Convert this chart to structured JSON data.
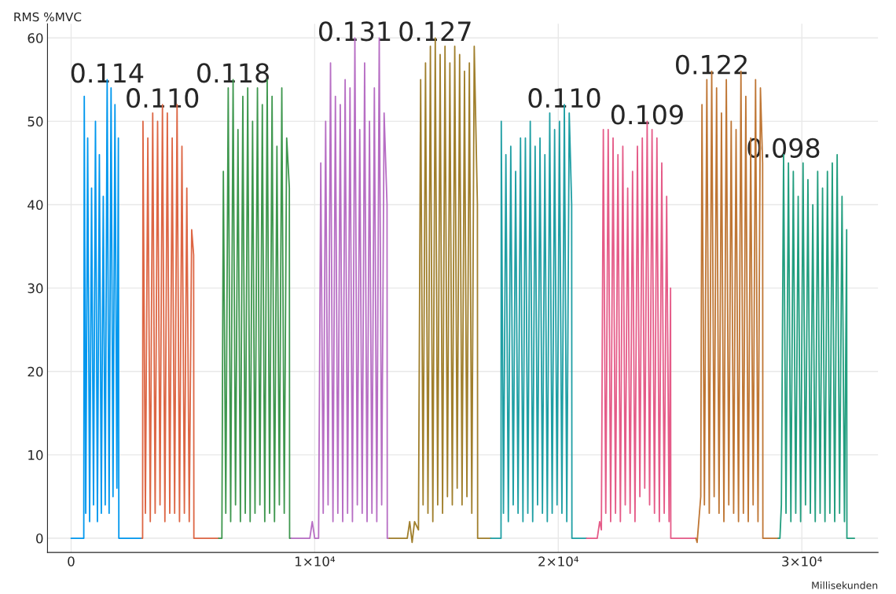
{
  "chart_data": {
    "type": "line",
    "ylabel": "RMS %MVC",
    "xlabel": "Millisekunden",
    "xlim": [
      -970,
      33130
    ],
    "ylim": [
      -1.7,
      61.7
    ],
    "xticks": [
      0,
      {
        "value": 10000,
        "label": "1×10⁴"
      },
      {
        "value": 20000,
        "label": "2×10⁴"
      },
      {
        "value": 30000,
        "label": "3×10⁴"
      }
    ],
    "yticks": [
      0,
      10,
      20,
      30,
      40,
      50,
      60
    ],
    "grid": true,
    "legend": false,
    "marker": "none",
    "line_style": "solid",
    "series": [
      {
        "color": "#0097ee",
        "x": [
          0,
          520,
          540,
          600,
          680,
          760,
          840,
          920,
          1000,
          1080,
          1160,
          1240,
          1320,
          1400,
          1480,
          1560,
          1640,
          1720,
          1800,
          1880,
          1940,
          1960,
          2900
        ],
        "values": [
          0,
          0,
          53,
          3,
          48,
          2,
          42,
          4,
          50,
          2,
          46,
          3,
          41,
          4,
          55,
          3,
          54,
          5,
          52,
          6,
          48,
          0,
          0
        ]
      },
      {
        "color": "#dd6644",
        "x": [
          2900,
          2935,
          2950,
          3050,
          3150,
          3250,
          3350,
          3450,
          3550,
          3650,
          3750,
          3850,
          3950,
          4050,
          4150,
          4250,
          4350,
          4450,
          4550,
          4650,
          4750,
          4850,
          4950,
          5030,
          5040,
          6060
        ],
        "values": [
          0,
          0,
          50,
          3,
          48,
          2,
          51,
          3,
          50,
          4,
          52,
          2,
          51,
          3,
          48,
          3,
          52,
          2,
          47,
          3,
          42,
          2,
          37,
          34,
          0,
          0
        ]
      },
      {
        "color": "#3e974e",
        "x": [
          6060,
          6190,
          6250,
          6350,
          6450,
          6550,
          6650,
          6750,
          6850,
          6950,
          7050,
          7150,
          7250,
          7350,
          7450,
          7550,
          7650,
          7750,
          7850,
          7950,
          8050,
          8150,
          8250,
          8350,
          8450,
          8550,
          8650,
          8750,
          8850,
          8960,
          8970,
          9030
        ],
        "values": [
          0,
          0,
          44,
          3,
          54,
          2,
          55,
          4,
          49,
          2,
          53,
          3,
          54,
          2,
          50,
          3,
          54,
          4,
          52,
          2,
          55,
          3,
          53,
          2,
          47,
          4,
          54,
          3,
          48,
          42,
          0,
          0
        ]
      },
      {
        "color": "#b76ec4",
        "x": [
          9030,
          9800,
          9900,
          10000,
          10160,
          10250,
          10350,
          10450,
          10550,
          10650,
          10750,
          10850,
          10950,
          11050,
          11150,
          11250,
          11350,
          11450,
          11550,
          11650,
          11750,
          11850,
          11950,
          12050,
          12150,
          12250,
          12350,
          12450,
          12550,
          12650,
          12750,
          12850,
          12970,
          12980,
          13060
        ],
        "values": [
          0,
          0,
          2,
          0,
          0,
          45,
          3,
          50,
          4,
          57,
          2,
          53,
          3,
          52,
          2,
          55,
          3,
          54,
          2,
          60,
          4,
          49,
          3,
          57,
          2,
          50,
          3,
          54,
          2,
          60,
          4,
          51,
          40,
          0,
          0
        ]
      },
      {
        "color": "#a07f2c",
        "x": [
          13060,
          13800,
          13900,
          14000,
          14100,
          14260,
          14350,
          14450,
          14550,
          14650,
          14750,
          14850,
          14950,
          15050,
          15150,
          15250,
          15350,
          15450,
          15550,
          15650,
          15750,
          15850,
          15950,
          16050,
          16150,
          16250,
          16350,
          16450,
          16550,
          16680,
          16690,
          17230
        ],
        "values": [
          0,
          0,
          2,
          -0.5,
          2,
          1,
          55,
          4,
          57,
          3,
          59,
          2,
          60,
          4,
          58,
          3,
          59,
          5,
          57,
          4,
          59,
          6,
          58,
          4,
          56,
          5,
          57,
          3,
          59,
          40,
          0,
          0
        ]
      },
      {
        "color": "#1f9fa4",
        "x": [
          17230,
          17650,
          17660,
          17750,
          17850,
          17950,
          18050,
          18150,
          18250,
          18350,
          18450,
          18550,
          18650,
          18750,
          18850,
          18950,
          19050,
          19150,
          19250,
          19350,
          19450,
          19550,
          19650,
          19750,
          19850,
          19950,
          20050,
          20150,
          20250,
          20350,
          20450,
          20550,
          20560,
          21160
        ],
        "values": [
          0,
          0,
          50,
          3,
          46,
          2,
          47,
          4,
          44,
          3,
          48,
          2,
          48,
          3,
          50,
          2,
          47,
          4,
          48,
          3,
          46,
          2,
          51,
          3,
          49,
          4,
          50,
          3,
          52,
          2,
          51,
          40,
          0,
          0
        ]
      },
      {
        "color": "#e55b88",
        "x": [
          21160,
          21600,
          21700,
          21770,
          21850,
          21950,
          22050,
          22150,
          22250,
          22350,
          22450,
          22550,
          22650,
          22750,
          22850,
          22950,
          23050,
          23150,
          23250,
          23350,
          23450,
          23550,
          23650,
          23750,
          23850,
          23950,
          24050,
          24150,
          24250,
          24350,
          24450,
          24550,
          24610,
          24620,
          25650
        ],
        "values": [
          0,
          0,
          2,
          1,
          49,
          3,
          49,
          2,
          48,
          3,
          46,
          2,
          47,
          4,
          42,
          3,
          44,
          2,
          47,
          5,
          48,
          6,
          50,
          4,
          49,
          3,
          48,
          2,
          45,
          3,
          41,
          2,
          30,
          0,
          0
        ]
      },
      {
        "color": "#bf7634",
        "x": [
          25650,
          25700,
          25850,
          25900,
          26000,
          26100,
          26200,
          26300,
          26400,
          26500,
          26600,
          26700,
          26800,
          26900,
          27000,
          27100,
          27200,
          27300,
          27400,
          27500,
          27600,
          27700,
          27800,
          27900,
          28000,
          28100,
          28200,
          28300,
          28390,
          28400,
          29030
        ],
        "values": [
          0,
          -0.5,
          5,
          52,
          4,
          55,
          3,
          56,
          5,
          54,
          3,
          51,
          2,
          55,
          4,
          50,
          3,
          49,
          2,
          56,
          3,
          53,
          2,
          48,
          4,
          55,
          2,
          54,
          45,
          0,
          0
        ]
      },
      {
        "color": "#229e7f",
        "x": [
          29030,
          29100,
          29160,
          29250,
          29350,
          29450,
          29550,
          29650,
          29750,
          29850,
          29950,
          30050,
          30150,
          30250,
          30350,
          30450,
          30550,
          30650,
          30750,
          30850,
          30950,
          31050,
          31150,
          31250,
          31350,
          31450,
          31550,
          31650,
          31750,
          31840,
          31850,
          32160
        ],
        "values": [
          0,
          0,
          4,
          46,
          3,
          45,
          2,
          44,
          3,
          41,
          2,
          45,
          4,
          43,
          3,
          40,
          2,
          44,
          3,
          42,
          2,
          44,
          3,
          45,
          2,
          46,
          3,
          41,
          2,
          37,
          0,
          0
        ]
      }
    ],
    "annotations": [
      "0.114",
      "0.110",
      "0.118",
      "0.131",
      "0.127",
      "0.110",
      "0.109",
      "0.122",
      "0.098"
    ]
  }
}
